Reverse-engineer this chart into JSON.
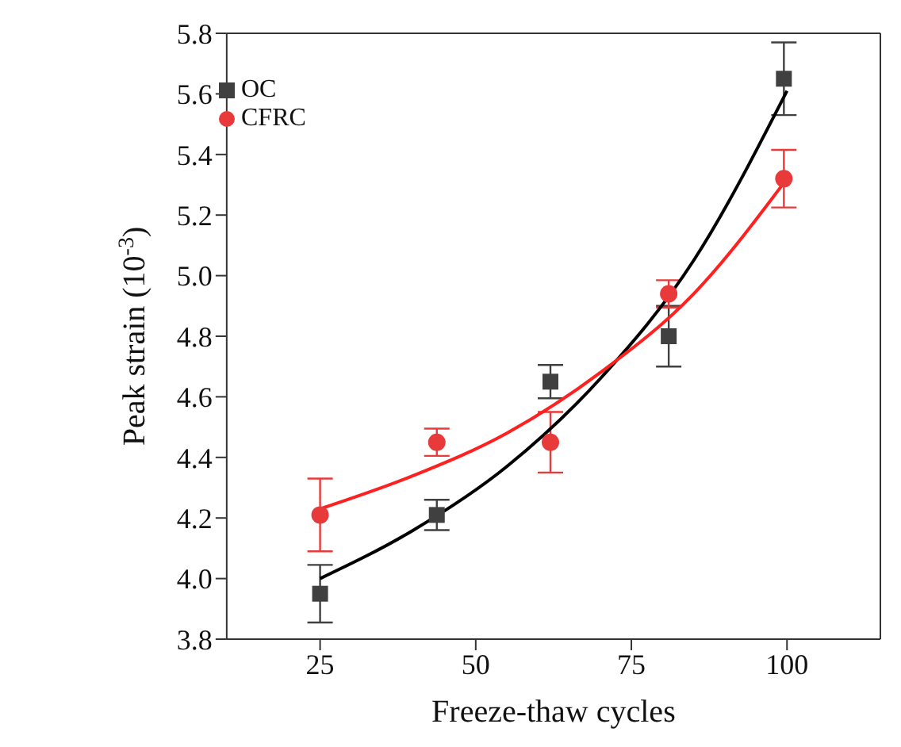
{
  "chart_data": {
    "type": "scatter",
    "xlabel": "Freeze-thaw cycles",
    "ylabel": "Peak strain (10$^{-3}$)",
    "xlim": [
      10,
      115
    ],
    "xticks": [
      25,
      50,
      75,
      100
    ],
    "ylim": [
      3.8,
      5.8
    ],
    "yticks": [
      {
        "value": 3.8,
        "label": "3.8"
      },
      {
        "value": 4.0,
        "label": "4.0"
      },
      {
        "value": 4.2,
        "label": "4.2"
      },
      {
        "value": 4.4,
        "label": "4.4"
      },
      {
        "value": 4.6,
        "label": "4.6"
      },
      {
        "value": 4.8,
        "label": "4.8"
      },
      {
        "value": 5.0,
        "label": "5.0"
      },
      {
        "value": 5.2,
        "label": "5.2"
      },
      {
        "value": 5.4,
        "label": "5.4"
      },
      {
        "value": 5.6,
        "label": "5.6"
      },
      {
        "value": 5.8,
        "label": "5.8"
      }
    ],
    "grid": false,
    "legend": "top left",
    "series": [
      {
        "name": "OC",
        "marker": "square",
        "color": "#404040",
        "x": [
          25,
          43.75,
          62,
          81,
          99.5
        ],
        "values": [
          3.95,
          4.21,
          4.65,
          4.8,
          5.65
        ],
        "errors": [
          0.095,
          0.05,
          0.055,
          0.1,
          0.12
        ]
      },
      {
        "name": "CFRC",
        "marker": "circle",
        "color": "#e83a3a",
        "x": [
          25,
          43.75,
          62,
          81,
          99.5
        ],
        "values": [
          4.21,
          4.45,
          4.45,
          4.94,
          5.32
        ],
        "errors": [
          0.12,
          0.045,
          0.1,
          0.045,
          0.095
        ]
      },
      {
        "type": "line",
        "marker": "none",
        "color": "#000000",
        "x": [
          25,
          40,
          55,
          70,
          85,
          100
        ],
        "values": [
          4.0,
          4.16,
          4.37,
          4.66,
          5.05,
          5.61
        ]
      },
      {
        "type": "line",
        "marker": "none",
        "color": "#ff2020",
        "x": [
          25,
          40,
          55,
          70,
          85,
          100
        ],
        "values": [
          4.23,
          4.34,
          4.48,
          4.68,
          4.94,
          5.32
        ]
      }
    ]
  }
}
